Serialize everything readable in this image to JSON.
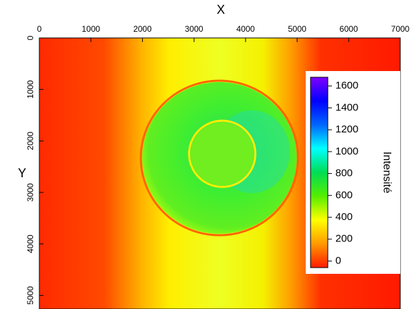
{
  "chart_data": {
    "type": "heatmap",
    "xlabel": "X",
    "ylabel": "Y",
    "xlim": [
      0,
      7000
    ],
    "xticks": [
      0,
      1000,
      2000,
      3000,
      4000,
      5000,
      6000,
      7000
    ],
    "ylim": [
      0,
      5250
    ],
    "yticks": [
      0,
      1000,
      2000,
      3000,
      4000,
      5000
    ],
    "colorbar": {
      "label": "Intensité",
      "clim": [
        -60,
        1680
      ],
      "ticks": [
        0,
        200,
        400,
        600,
        800,
        1000,
        1200,
        1400,
        1600
      ],
      "colors": [
        "#ff1a00",
        "#ff9900",
        "#ffff00",
        "#55ee00",
        "#00dd55",
        "#00ffff",
        "#0066ff",
        "#0000ff",
        "#8000ff"
      ]
    }
  }
}
